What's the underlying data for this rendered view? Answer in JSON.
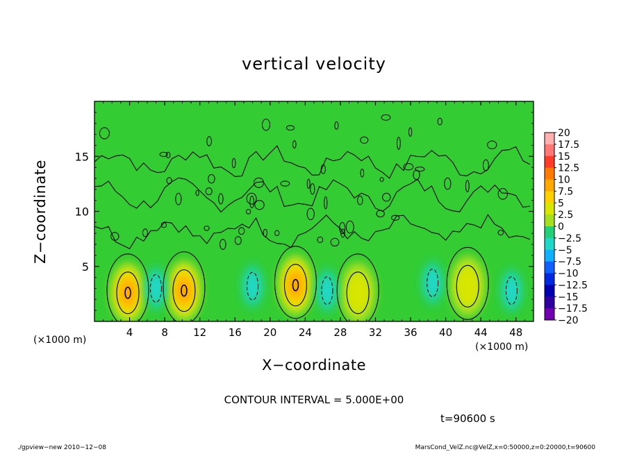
{
  "title": "vertical velocity",
  "xlabel": "X−coordinate",
  "ylabel": "Z−coordinate",
  "x_unit_left": "(×1000 m)",
  "x_unit_right": "(×1000 m)",
  "contour_interval": "CONTOUR INTERVAL = 5.000E+00",
  "time_label": "t=90600 s",
  "footer_left": "./gpview−new 2010−12−08",
  "footer_right": "MarsCond_VelZ.nc@VelZ,x=0:50000,z=0:20000,t=90600",
  "chart_data": {
    "type": "heatmap",
    "title": "vertical velocity",
    "xlabel": "X−coordinate",
    "ylabel": "Z−coordinate",
    "x_unit": "(×1000 m)",
    "xlim": [
      0,
      50
    ],
    "ylim": [
      0,
      20
    ],
    "x_ticks": [
      4,
      8,
      12,
      16,
      20,
      24,
      28,
      32,
      36,
      40,
      44,
      48
    ],
    "y_ticks": [
      5,
      10,
      15
    ],
    "x_tick_labels": [
      "4",
      "8",
      "12",
      "16",
      "20",
      "24",
      "28",
      "32",
      "36",
      "40",
      "44",
      "48"
    ],
    "y_tick_labels": [
      "5",
      "10",
      "15"
    ],
    "contour_interval": 5.0,
    "colorbar": {
      "labels": [
        "20",
        "17.5",
        "15",
        "12.5",
        "10",
        "7.5",
        "5",
        "2.5",
        "0",
        "−2.5",
        "−5",
        "−7.5",
        "−10",
        "−12.5",
        "−15",
        "−17.5",
        "−20"
      ],
      "colors": [
        "#ffb0b0",
        "#ff7878",
        "#ff3c28",
        "#ff7a00",
        "#ffa800",
        "#ffd000",
        "#d8e600",
        "#a4e020",
        "#22cc22",
        "#22d078",
        "#20d8c8",
        "#10b0ff",
        "#1060ff",
        "#0028e0",
        "#0000b0",
        "#3000a0",
        "#7000b0"
      ]
    },
    "features": [
      {
        "kind": "updraft",
        "x": 3.8,
        "z": 2.6,
        "w_max": 11
      },
      {
        "kind": "updraft",
        "x": 10.2,
        "z": 2.8,
        "w_max": 11
      },
      {
        "kind": "updraft",
        "x": 22.9,
        "z": 3.3,
        "w_max": 11
      },
      {
        "kind": "updraft",
        "x": 30.0,
        "z": 2.6,
        "w_max": 6
      },
      {
        "kind": "updraft",
        "x": 42.5,
        "z": 3.2,
        "w_max": 7
      },
      {
        "kind": "downdraft",
        "x": 7.0,
        "z": 3.0,
        "w_min": -6
      },
      {
        "kind": "downdraft",
        "x": 18.0,
        "z": 3.2,
        "w_min": -6
      },
      {
        "kind": "downdraft",
        "x": 26.5,
        "z": 2.8,
        "w_min": -5
      },
      {
        "kind": "downdraft",
        "x": 38.5,
        "z": 3.5,
        "w_min": -6
      },
      {
        "kind": "downdraft",
        "x": 47.5,
        "z": 2.8,
        "w_min": -5
      }
    ]
  }
}
